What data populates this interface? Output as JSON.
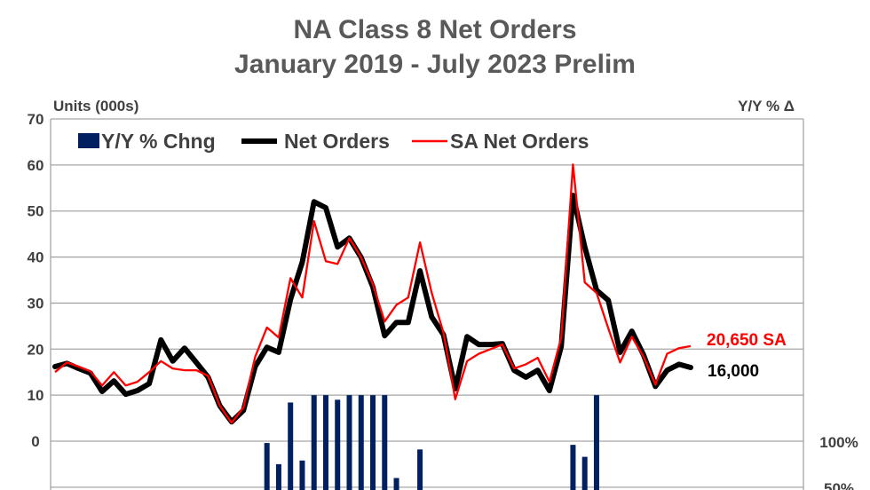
{
  "chart_data": {
    "type": "line+bar",
    "title": [
      "NA Class 8 Net Orders",
      "January 2019 - July 2023 Prelim"
    ],
    "ylabel_left": "Units (000s)",
    "ylabel_right": "Y/Y % Δ",
    "ylim_left": [
      0,
      70
    ],
    "yticks_left": [
      "0",
      "10",
      "20",
      "30",
      "40",
      "50",
      "60",
      "70"
    ],
    "yticks_right_visible": [
      "100%",
      "50%"
    ],
    "grid": true,
    "legend_placement": "top-left",
    "legend": [
      "Y/Y % Chng",
      "Net Orders",
      "SA Net Orders"
    ],
    "x_range": "Jan 2019 - Jul 2023 (monthly, 55 points)",
    "series": [
      {
        "name": "Net Orders",
        "color": "#000000",
        "values": [
          16.2,
          16.9,
          15.8,
          14.8,
          10.8,
          13.1,
          10.2,
          11.0,
          12.5,
          22.0,
          17.4,
          20.2,
          17.1,
          13.9,
          7.7,
          4.2,
          6.7,
          16.2,
          20.4,
          19.3,
          30.8,
          38.9,
          52.0,
          50.7,
          42.2,
          44.1,
          39.9,
          33.5,
          22.9,
          25.8,
          25.8,
          37.0,
          27.0,
          23.1,
          11.4,
          22.7,
          21.0,
          21.0,
          21.2,
          15.4,
          13.9,
          15.4,
          11.0,
          20.6,
          53.4,
          42.2,
          32.8,
          30.6,
          19.3,
          23.9,
          18.7,
          11.9,
          15.4,
          16.7,
          16.0
        ]
      },
      {
        "name": "SA Net Orders",
        "color": "#ff0000",
        "values": [
          15.0,
          17.1,
          16.2,
          15.2,
          12.1,
          15.0,
          12.1,
          12.9,
          15.0,
          17.4,
          15.8,
          15.4,
          15.4,
          14.2,
          7.7,
          4.0,
          7.3,
          18.3,
          24.7,
          22.5,
          35.4,
          31.2,
          47.8,
          39.1,
          38.5,
          44.1,
          39.9,
          34.1,
          26.0,
          29.6,
          31.2,
          43.2,
          32.2,
          23.5,
          9.1,
          17.4,
          19.0,
          20.0,
          21.0,
          15.8,
          16.7,
          18.1,
          12.9,
          22.5,
          60.1,
          34.5,
          32.2,
          24.5,
          17.1,
          22.7,
          18.3,
          12.3,
          19.0,
          20.2,
          20.65
        ]
      },
      {
        "name": "Y/Y % Chng",
        "color": "#002060",
        "axis": "right",
        "unit": "%",
        "points": [
          [
            18,
            98
          ],
          [
            19,
            75
          ],
          [
            20,
            142
          ],
          [
            21,
            79
          ],
          [
            22,
            150
          ],
          [
            23,
            150
          ],
          [
            24,
            145
          ],
          [
            25,
            150
          ],
          [
            26,
            150
          ],
          [
            27,
            150
          ],
          [
            28,
            150
          ],
          [
            29,
            60
          ],
          [
            31,
            91
          ],
          [
            44,
            96
          ],
          [
            45,
            83
          ],
          [
            46,
            150
          ]
        ]
      }
    ],
    "annotations": [
      {
        "text": "20,650 SA",
        "color": "#ff0000"
      },
      {
        "text": "16,000",
        "color": "#000000"
      }
    ]
  }
}
